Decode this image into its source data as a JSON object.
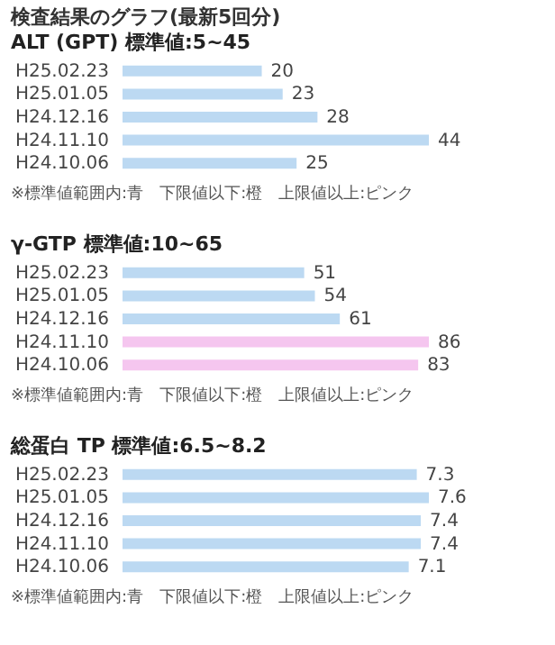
{
  "chart_data": [
    {
      "type": "bar",
      "orientation": "horizontal",
      "title": "ALT (GPT)  標準値:5~45",
      "annotations": [
        "検査結果のグラフ(最新5回分)",
        "※標準値範囲内:青　下限値以下:橙　上限値以上:ピンク"
      ],
      "categories": [
        "H25.02.23",
        "H25.01.05",
        "H24.12.16",
        "H24.11.10",
        "H24.10.06"
      ],
      "values": [
        20,
        23,
        28,
        44,
        25
      ],
      "colors": [
        "#bcd9f2",
        "#bcd9f2",
        "#bcd9f2",
        "#bcd9f2",
        "#bcd9f2"
      ],
      "data_labels": true
    },
    {
      "type": "bar",
      "orientation": "horizontal",
      "title": "γ-GTP  標準値:10~65",
      "annotations": [
        "※標準値範囲内:青　下限値以下:橙　上限値以上:ピンク"
      ],
      "categories": [
        "H25.02.23",
        "H25.01.05",
        "H24.12.16",
        "H24.11.10",
        "H24.10.06"
      ],
      "values": [
        51,
        54,
        61,
        86,
        83
      ],
      "colors": [
        "#bcd9f2",
        "#bcd9f2",
        "#bcd9f2",
        "#f5c6ef",
        "#f5c6ef"
      ],
      "data_labels": true
    },
    {
      "type": "bar",
      "orientation": "horizontal",
      "title": "総蛋白 TP  標準値:6.5~8.2",
      "annotations": [
        "※標準値範囲内:青　下限値以下:橙　上限値以上:ピンク"
      ],
      "categories": [
        "H25.02.23",
        "H25.01.05",
        "H24.12.16",
        "H24.11.10",
        "H24.10.06"
      ],
      "values": [
        7.3,
        7.6,
        7.4,
        7.4,
        7.1
      ],
      "colors": [
        "#bcd9f2",
        "#bcd9f2",
        "#bcd9f2",
        "#bcd9f2",
        "#bcd9f2"
      ],
      "data_labels": true
    }
  ]
}
